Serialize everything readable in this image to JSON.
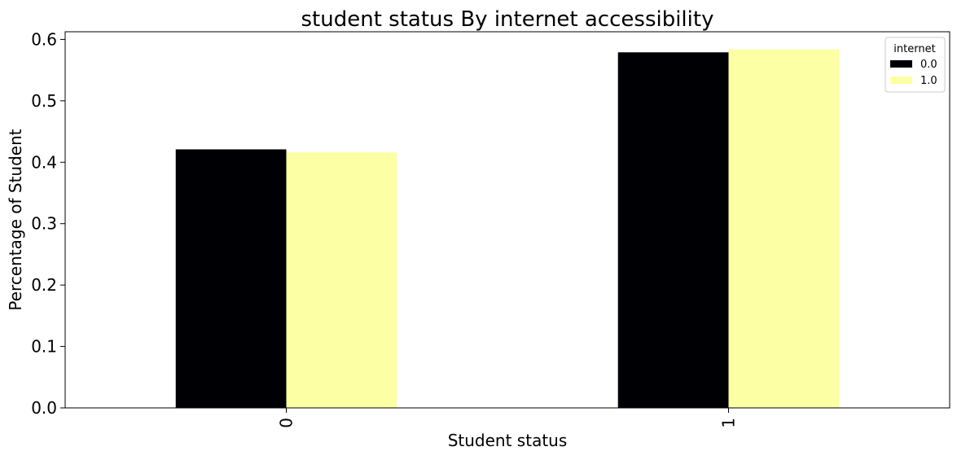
{
  "chart_data": {
    "type": "bar",
    "title": "student status By internet accessibility",
    "xlabel": "Student status",
    "ylabel": "Percentage of Student",
    "categories": [
      "0",
      "1"
    ],
    "series": [
      {
        "name": "0.0",
        "values": [
          0.421,
          0.579
        ],
        "color": "#000004"
      },
      {
        "name": "1.0",
        "values": [
          0.416,
          0.584
        ],
        "color": "#fcffa4"
      }
    ],
    "ylim": [
      0,
      0.6125
    ],
    "yticks": [
      0.0,
      0.1,
      0.2,
      0.3,
      0.4,
      0.5,
      0.6
    ],
    "ytick_labels": [
      "0.0",
      "0.1",
      "0.2",
      "0.3",
      "0.4",
      "0.5",
      "0.6"
    ],
    "grid": false,
    "legend": {
      "title": "internet",
      "placement": "top-right"
    }
  }
}
